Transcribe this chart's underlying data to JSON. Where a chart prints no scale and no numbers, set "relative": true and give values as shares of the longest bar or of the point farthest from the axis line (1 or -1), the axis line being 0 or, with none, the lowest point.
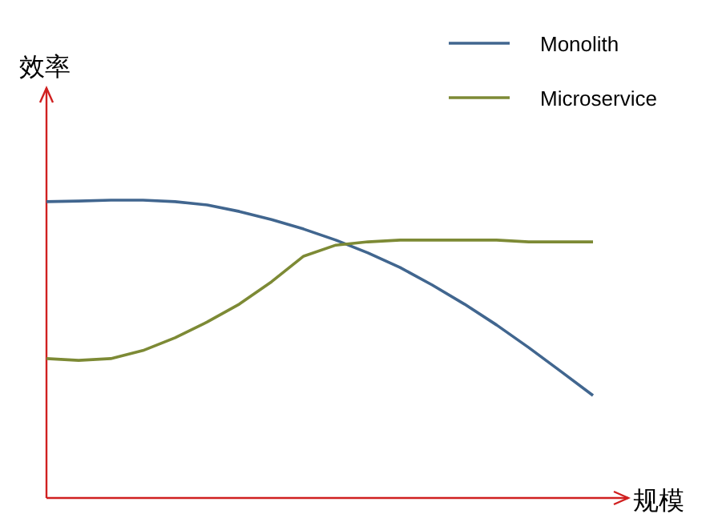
{
  "chart_data": {
    "type": "line",
    "relative": true,
    "xlabel": "规模",
    "ylabel": "效率",
    "legend": "top right",
    "categories": [
      null,
      null,
      null,
      null,
      null,
      null,
      null,
      null,
      null,
      null,
      null,
      null,
      null,
      null,
      null,
      null,
      null,
      null
    ],
    "series": [
      {
        "name": "Monolith",
        "color": "#41668f",
        "values": [
          0.995,
          0.997,
          1,
          1,
          0.995,
          0.984,
          0.962,
          0.935,
          0.903,
          0.866,
          0.823,
          0.774,
          0.715,
          0.651,
          0.581,
          0.505,
          0.425,
          0.344
        ]
      },
      {
        "name": "Microservice",
        "color": "#7d8a35",
        "values": [
          0.468,
          0.462,
          0.468,
          0.495,
          0.538,
          0.591,
          0.651,
          0.726,
          0.812,
          0.849,
          0.86,
          0.866,
          0.866,
          0.866,
          0.866,
          0.86,
          0.86,
          0.86
        ]
      }
    ]
  }
}
